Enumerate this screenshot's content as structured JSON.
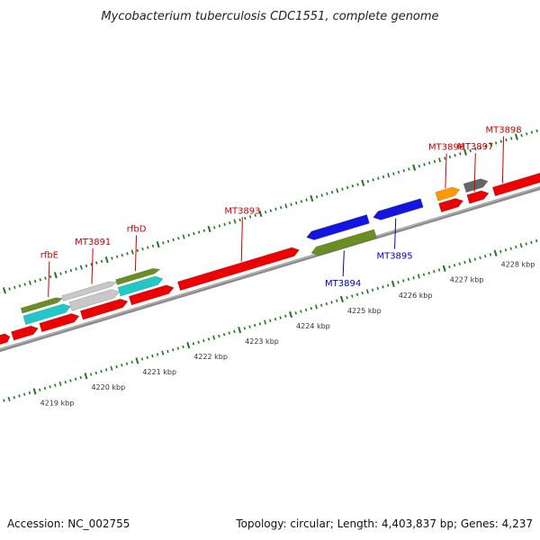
{
  "title": "Mycobacterium tuberculosis CDC1551, complete genome",
  "footer": {
    "accession": "Accession: NC_002755",
    "topology": "Topology: circular; Length: 4,403,837 bp; Genes: 4,237"
  },
  "colors": {
    "background": "#ffffff",
    "backbone": "#8c8c8c",
    "tick": "#1a7a1a",
    "forward_label": "#cc0000",
    "reverse_label": "#0000cc",
    "gene_red": "#ee0000",
    "gene_blue": "#1515e0",
    "gene_olive": "#6b8e23",
    "gene_cyan": "#22c8c8",
    "gene_grey": "#c8c8c8",
    "gene_orange": "#ff9900",
    "gene_darkgrey": "#666666"
  },
  "chart_data": {
    "type": "genome-map",
    "title": "Mycobacterium tuberculosis CDC1551, complete genome",
    "units": "kbp",
    "visible_range_kbp": [
      4218.6,
      4228.8
    ],
    "ticks_kbp": [
      {
        "value": 4219,
        "label": "4219 kbp"
      },
      {
        "value": 4220,
        "label": "4220 kbp"
      },
      {
        "value": 4221,
        "label": "4221 kbp"
      },
      {
        "value": 4222,
        "label": "4222 kbp"
      },
      {
        "value": 4223,
        "label": "4223 kbp"
      },
      {
        "value": 4224,
        "label": "4224 kbp"
      },
      {
        "value": 4225,
        "label": "4225 kbp"
      },
      {
        "value": 4226,
        "label": "4226 kbp"
      },
      {
        "value": 4227,
        "label": "4227 kbp"
      },
      {
        "value": 4228,
        "label": "4228 kbp"
      }
    ],
    "genes": [
      {
        "start": 4218.6,
        "end": 4218.85,
        "strand": "+",
        "lane": 0,
        "color": "gene_red",
        "label": ""
      },
      {
        "start": 4218.9,
        "end": 4219.4,
        "strand": "+",
        "lane": 0,
        "color": "gene_red",
        "label": ""
      },
      {
        "start": 4219.45,
        "end": 4220.2,
        "strand": "+",
        "lane": 0,
        "color": "gene_red",
        "label": ""
      },
      {
        "start": 4220.25,
        "end": 4221.15,
        "strand": "+",
        "lane": 0,
        "color": "gene_red",
        "label": ""
      },
      {
        "start": 4221.2,
        "end": 4222.05,
        "strand": "+",
        "lane": 0,
        "color": "gene_red",
        "label": ""
      },
      {
        "start": 4219.2,
        "end": 4220.1,
        "strand": "+",
        "lane": 1,
        "color": "gene_cyan",
        "label": ""
      },
      {
        "start": 4220.1,
        "end": 4221.05,
        "strand": "+",
        "lane": 1,
        "color": "gene_grey",
        "label": ""
      },
      {
        "start": 4221.05,
        "end": 4221.9,
        "strand": "+",
        "lane": 1,
        "color": "gene_cyan",
        "label": ""
      },
      {
        "start": 4219.2,
        "end": 4220.0,
        "strand": "+",
        "lane": 2,
        "color": "gene_olive",
        "label": "rfbE"
      },
      {
        "start": 4220.0,
        "end": 4221.05,
        "strand": "+",
        "lane": 2,
        "color": "gene_grey",
        "label": "MT3891"
      },
      {
        "start": 4221.05,
        "end": 4221.9,
        "strand": "+",
        "lane": 2,
        "color": "gene_olive",
        "label": "rfbD"
      },
      {
        "start": 4222.15,
        "end": 4224.5,
        "strand": "+",
        "lane": 0,
        "color": "gene_red",
        "label": "MT3893"
      },
      {
        "start": 4224.7,
        "end": 4225.9,
        "strand": "-",
        "lane": 0,
        "color": "gene_blue",
        "label": ""
      },
      {
        "start": 4226.0,
        "end": 4226.95,
        "strand": "-",
        "lane": 0,
        "color": "gene_blue",
        "label": "MT3895"
      },
      {
        "start": 4224.7,
        "end": 4225.95,
        "strand": "-",
        "lane": 1,
        "color": "gene_olive",
        "label": "MT3894"
      },
      {
        "start": 4227.25,
        "end": 4227.7,
        "strand": "+",
        "lane": 0,
        "color": "gene_red",
        "label": ""
      },
      {
        "start": 4227.8,
        "end": 4228.2,
        "strand": "+",
        "lane": 0,
        "color": "gene_red",
        "label": "MT3897"
      },
      {
        "start": 4228.3,
        "end": 4229.5,
        "strand": "+",
        "lane": 0,
        "color": "gene_red",
        "label": "MT3898"
      },
      {
        "start": 4227.25,
        "end": 4227.7,
        "strand": "+",
        "lane": 1,
        "color": "gene_orange",
        "label": "MT3896"
      },
      {
        "start": 4227.8,
        "end": 4228.25,
        "strand": "+",
        "lane": 1,
        "color": "gene_darkgrey",
        "label": ""
      }
    ]
  }
}
